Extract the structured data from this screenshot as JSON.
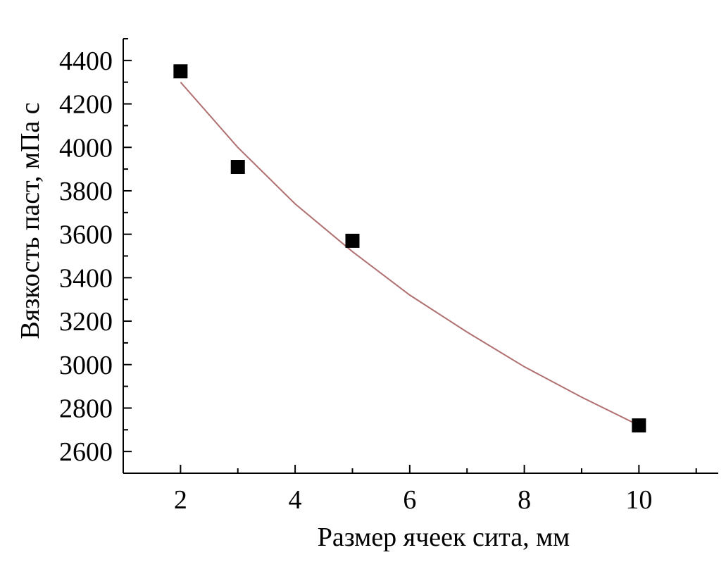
{
  "chart_data": {
    "type": "scatter",
    "title": "",
    "xlabel": "Размер ячеек сита, мм",
    "ylabel": "Вязкость паст, мПа с",
    "xlim": [
      1,
      11.2
    ],
    "ylim": [
      2500,
      4500
    ],
    "x_ticks": [
      2,
      4,
      6,
      8,
      10
    ],
    "y_ticks": [
      2600,
      2800,
      3000,
      3200,
      3400,
      3600,
      3800,
      4000,
      4200,
      4400
    ],
    "grid": false,
    "legend": "none",
    "series": [
      {
        "marker": "square",
        "color": "#000000",
        "points": [
          {
            "x": 2,
            "y": 4350
          },
          {
            "x": 3,
            "y": 3910
          },
          {
            "x": 5,
            "y": 3570
          },
          {
            "x": 10,
            "y": 2720
          }
        ]
      }
    ],
    "trendline": {
      "kind": "exponential",
      "color": "#b07070",
      "points": [
        {
          "x": 2,
          "y": 4300
        },
        {
          "x": 3,
          "y": 4000
        },
        {
          "x": 4,
          "y": 3740
        },
        {
          "x": 5,
          "y": 3520
        },
        {
          "x": 6,
          "y": 3320
        },
        {
          "x": 7,
          "y": 3150
        },
        {
          "x": 8,
          "y": 2990
        },
        {
          "x": 9,
          "y": 2850
        },
        {
          "x": 10,
          "y": 2720
        }
      ]
    }
  }
}
